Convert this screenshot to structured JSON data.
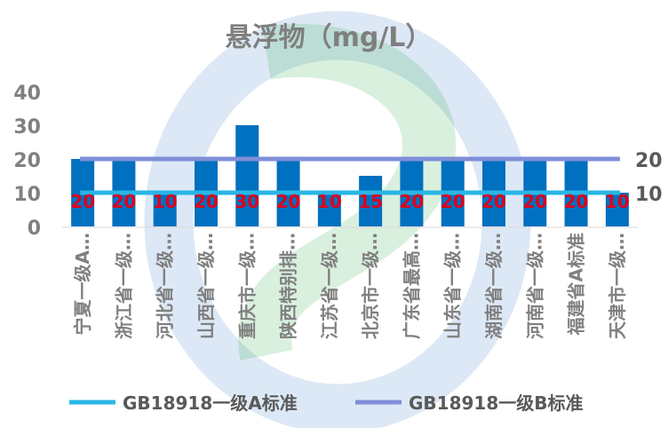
{
  "chart_data": {
    "type": "bar",
    "title": "悬浮物（mg/L）",
    "categories": [
      "宁夏一级A…",
      "浙江省一级…",
      "河北省一级…",
      "山西省一级…",
      "重庆市一级…",
      "陕西特别排…",
      "江苏省一级…",
      "北京市一级…",
      "广东省最高…",
      "山东省一级…",
      "湖南省一级…",
      "河南省一级…",
      "福建省A标准",
      "天津市一级…"
    ],
    "values": [
      20,
      20,
      10,
      20,
      30,
      20,
      10,
      15,
      20,
      20,
      20,
      20,
      20,
      10
    ],
    "data_labels": [
      "20",
      "20",
      "10",
      "20",
      "30",
      "20",
      "10",
      "15",
      "20",
      "20",
      "20",
      "20",
      "20",
      "10"
    ],
    "ylim": [
      0,
      40
    ],
    "yticks": [
      "0",
      "10",
      "20",
      "30",
      "40"
    ],
    "reference_lines": [
      {
        "name": "GB18918一级A标准",
        "value": 10,
        "end_label": "10",
        "color": "#29B6E5"
      },
      {
        "name": "GB18918一级B标准",
        "value": 20,
        "end_label": "20",
        "color": "#7F8FD8"
      }
    ],
    "bar_color": "#0070C0",
    "label_color": "#E0001B",
    "legend_position": "bottom",
    "grid": false
  }
}
